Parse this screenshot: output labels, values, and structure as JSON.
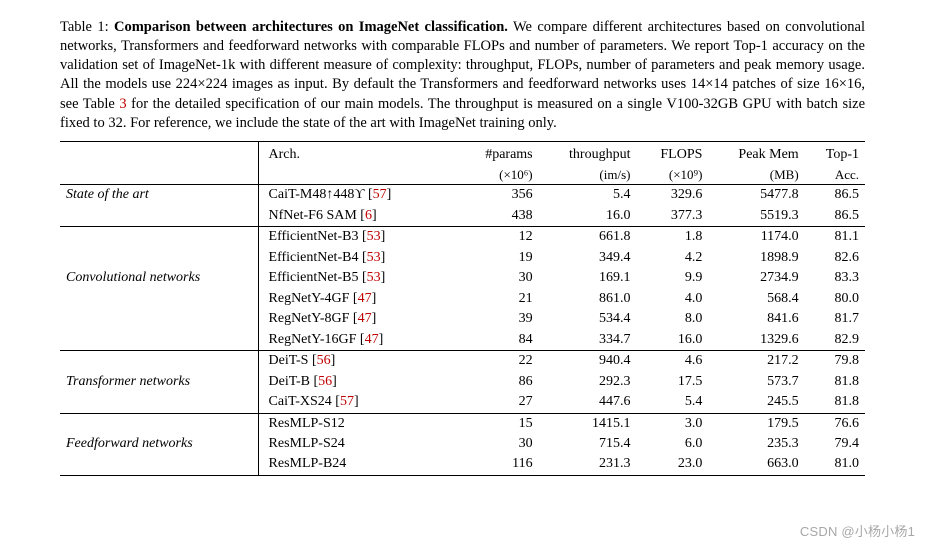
{
  "caption": {
    "label": "Table 1:",
    "title": "Comparison between architectures on ImageNet classification.",
    "body_a": "We compare different architectures based on convolutional networks, Transformers and feedforward networks with comparable FLOPs and number of parameters. We report Top-1 accuracy on the validation set of ImageNet-1k with different measure of complexity: throughput, FLOPs, number of parameters and peak memory usage. All the models use 224×224 images as input. By default the Transformers and feedforward networks uses 14×14 patches of size 16×16, see Table ",
    "table_ref": "3",
    "body_b": " for the detailed specification of our main models. The throughput is measured on a single V100-32GB GPU with batch size fixed to 32. For reference, we include the state of the art with ImageNet training only."
  },
  "columns": {
    "arch": "Arch.",
    "params": "#params",
    "params_sub": "(×10⁶)",
    "thr": "throughput",
    "thr_sub": "(im/s)",
    "flops": "FLOPS",
    "flops_sub": "(×10⁹)",
    "mem": "Peak Mem",
    "mem_sub": "(MB)",
    "acc": "Top-1",
    "acc_sub": "Acc."
  },
  "groups": [
    {
      "name": "State of the art",
      "rows": [
        {
          "arch": "CaiT-M48↑448ϒ",
          "cite": "57",
          "params": "356",
          "thr": "5.4",
          "flops": "329.6",
          "mem": "5477.8",
          "acc": "86.5"
        },
        {
          "arch": "NfNet-F6 SAM",
          "cite": "6",
          "params": "438",
          "thr": "16.0",
          "flops": "377.3",
          "mem": "5519.3",
          "acc": "86.5"
        }
      ]
    },
    {
      "name": "Convolutional networks",
      "rows": [
        {
          "arch": "EfficientNet-B3",
          "cite": "53",
          "params": "12",
          "thr": "661.8",
          "flops": "1.8",
          "mem": "1174.0",
          "acc": "81.1"
        },
        {
          "arch": "EfficientNet-B4",
          "cite": "53",
          "params": "19",
          "thr": "349.4",
          "flops": "4.2",
          "mem": "1898.9",
          "acc": "82.6"
        },
        {
          "arch": "EfficientNet-B5",
          "cite": "53",
          "params": "30",
          "thr": "169.1",
          "flops": "9.9",
          "mem": "2734.9",
          "acc": "83.3"
        },
        {
          "arch": "RegNetY-4GF",
          "cite": "47",
          "params": "21",
          "thr": "861.0",
          "flops": "4.0",
          "mem": "568.4",
          "acc": "80.0"
        },
        {
          "arch": "RegNetY-8GF",
          "cite": "47",
          "params": "39",
          "thr": "534.4",
          "flops": "8.0",
          "mem": "841.6",
          "acc": "81.7"
        },
        {
          "arch": "RegNetY-16GF",
          "cite": "47",
          "params": "84",
          "thr": "334.7",
          "flops": "16.0",
          "mem": "1329.6",
          "acc": "82.9"
        }
      ]
    },
    {
      "name": "Transformer networks",
      "rows": [
        {
          "arch": "DeiT-S",
          "cite": "56",
          "params": "22",
          "thr": "940.4",
          "flops": "4.6",
          "mem": "217.2",
          "acc": "79.8"
        },
        {
          "arch": "DeiT-B",
          "cite": "56",
          "params": "86",
          "thr": "292.3",
          "flops": "17.5",
          "mem": "573.7",
          "acc": "81.8"
        },
        {
          "arch": "CaiT-XS24",
          "cite": "57",
          "params": "27",
          "thr": "447.6",
          "flops": "5.4",
          "mem": "245.5",
          "acc": "81.8"
        }
      ]
    },
    {
      "name": "Feedforward networks",
      "rows": [
        {
          "arch": "ResMLP-S12",
          "cite": "",
          "params": "15",
          "thr": "1415.1",
          "flops": "3.0",
          "mem": "179.5",
          "acc": "76.6"
        },
        {
          "arch": "ResMLP-S24",
          "cite": "",
          "params": "30",
          "thr": "715.4",
          "flops": "6.0",
          "mem": "235.3",
          "acc": "79.4"
        },
        {
          "arch": "ResMLP-B24",
          "cite": "",
          "params": "116",
          "thr": "231.3",
          "flops": "23.0",
          "mem": "663.0",
          "acc": "81.0"
        }
      ]
    }
  ],
  "watermark": "CSDN @小杨小杨1",
  "style": {
    "cite_color": "#c00000",
    "text_color": "#000000",
    "background": "#ffffff",
    "font_size_body": 14.5,
    "font_size_table": 14
  }
}
